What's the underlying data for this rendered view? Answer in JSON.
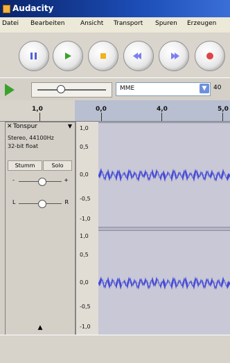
{
  "window": {
    "title": "Audacity"
  },
  "menu": {
    "items": [
      "Datei",
      "Bearbeiten",
      "Ansicht",
      "Transport",
      "Spuren",
      "Erzeugen"
    ]
  },
  "toolbar": {
    "buttons": [
      {
        "name": "pause-button",
        "icon": "pause-icon",
        "color": "#4f62d8"
      },
      {
        "name": "play-button",
        "icon": "play-icon",
        "color": "#3aa22b"
      },
      {
        "name": "stop-button",
        "icon": "stop-icon",
        "color": "#f1b21e"
      },
      {
        "name": "skip-start-button",
        "icon": "skip-start-icon",
        "color": "#7d7ff0"
      },
      {
        "name": "skip-end-button",
        "icon": "skip-end-icon",
        "color": "#7d7ff0"
      },
      {
        "name": "record-button",
        "icon": "record-icon",
        "color": "#e04444"
      }
    ]
  },
  "mixer": {
    "device_input": "MME",
    "rate_label": "40"
  },
  "ruler": {
    "labels": [
      "1,0",
      "0,0",
      "4,0",
      "5,0"
    ]
  },
  "track": {
    "name": "Tonspur",
    "info_line_1": "Stereo, 44100Hz",
    "info_line_2": "32-bit float",
    "mute_label": "Stumm",
    "solo_label": "Solo",
    "gain_minus": "-",
    "gain_plus": "+",
    "pan_left": "L",
    "pan_right": "R",
    "collapse_icon": "▲"
  },
  "scale": {
    "top_channel": [
      "1,0",
      "0,5",
      "0,0",
      "-0,5",
      "-1,0"
    ],
    "bottom_channel": [
      "1,0",
      "0,5",
      "0,0",
      "-0,5",
      "-1,0"
    ]
  }
}
